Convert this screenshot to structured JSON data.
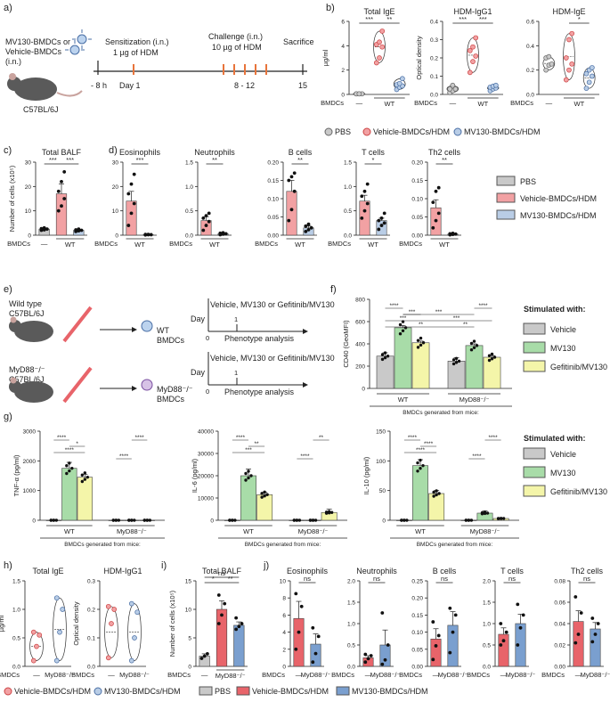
{
  "colors": {
    "pbs": "#c9c9c9",
    "vehicle": "#f2a1a3",
    "mv130": "#b9cde6",
    "veh_dot": "#e36b6f",
    "mv_dot": "#7aa3d6",
    "cvehicle": "#c9c9c9",
    "cmv130": "#a8dca8",
    "cgef": "#f4f5a9",
    "red_solid": "#e8646a",
    "blue_solid": "#7a9fcf"
  },
  "panels": {
    "a": "a)",
    "b": "b)",
    "c": "c)",
    "d": "d)",
    "e": "e)",
    "f": "f)",
    "g": "g)",
    "h": "h)",
    "i": "i)",
    "j": "j)"
  },
  "a": {
    "mouse_label": "C57BL/6J",
    "treatment": "MV130-BMDCs or\nVehicle-BMDCs\n(i.n.)",
    "sens_title": "Sensitization (i.n.)",
    "sens_sub": "1 µg of HDM",
    "chal_title": "Challenge (i.n.)",
    "chal_sub": "10 µg of HDM",
    "sacrifice": "Sacrifice",
    "t_m8": "- 8 h",
    "t_d1": "Day 1",
    "t_812": "8 - 12",
    "t_15": "15"
  },
  "e": {
    "wt_mouse": "Wild type\nC57BL/6J",
    "wt_cells": "WT\nBMDCs",
    "myd_mouse": "MyD88⁻/⁻\nC57BL/6J",
    "myd_cells": "MyD88⁻/⁻\nBMDCs",
    "stim": "Vehicle, MV130 or Gefitinib/MV130",
    "day": "Day",
    "d0": "0",
    "d1": "1",
    "pheno": "Phenotype analysis"
  },
  "common": {
    "bmdcs": "BMDCs",
    "wt": "WT",
    "dash": "—",
    "myd": "MyD88⁻/⁻",
    "generated": "BMDCs generated from mice:",
    "stimulated": "Stimulated with:",
    "ns": "ns"
  },
  "legend_b": [
    "PBS",
    "Vehicle-BMDCs/HDM",
    "MV130-BMDCs/HDM"
  ],
  "legend_d": [
    "PBS",
    "Vehicle-BMDCs/HDM",
    "MV130-BMDCs/HDM"
  ],
  "legend_f": [
    "Vehicle",
    "MV130",
    "Gefitinib/MV130"
  ],
  "legend_g": [
    "Vehicle",
    "MV130",
    "Gefitinib/MV130"
  ],
  "legend_h": [
    "Vehicle-BMDCs/HDM",
    "MV130-BMDCs/HDM"
  ],
  "legend_ij": [
    "PBS",
    "Vehicle-BMDCs/HDM",
    "MV130-BMDCs/HDM"
  ],
  "chart_data": [
    {
      "id": "b1",
      "type": "violin",
      "title": "Total IgE",
      "ylabel": "µg/ml",
      "ylim": [
        0,
        6
      ],
      "ticks": [
        0,
        2,
        4,
        6
      ],
      "groups": [
        {
          "name": "PBS",
          "points": [
            0.05,
            0.05,
            0.05,
            0.05,
            0.05
          ]
        },
        {
          "name": "Vehicle-BMDCs/HDM",
          "points": [
            2.6,
            3.0,
            3.9,
            4.1,
            4.3,
            5.2
          ]
        },
        {
          "name": "MV130-BMDCs/HDM",
          "points": [
            0.4,
            0.6,
            0.7,
            0.8,
            0.9,
            1.3
          ]
        }
      ],
      "sig": [
        "***",
        "**"
      ]
    },
    {
      "id": "b2",
      "type": "violin",
      "title": "HDM-IgG1",
      "ylabel": "Optical density",
      "ylim": [
        0,
        0.4
      ],
      "ticks": [
        0.0,
        0.1,
        0.2,
        0.3,
        0.4
      ],
      "groups": [
        {
          "name": "PBS",
          "points": [
            0.01,
            0.02,
            0.03,
            0.03,
            0.05
          ]
        },
        {
          "name": "Vehicle-BMDCs/HDM",
          "points": [
            0.12,
            0.18,
            0.21,
            0.24,
            0.26,
            0.31
          ]
        },
        {
          "name": "MV130-BMDCs/HDM",
          "points": [
            0.02,
            0.03,
            0.035,
            0.04,
            0.045,
            0.05
          ]
        }
      ],
      "sig": [
        "***",
        "***"
      ]
    },
    {
      "id": "b3",
      "type": "violin",
      "title": "HDM-IgE",
      "ylabel": "",
      "ylim": [
        0,
        0.6
      ],
      "ticks": [
        0.0,
        0.2,
        0.4,
        0.6
      ],
      "groups": [
        {
          "name": "PBS",
          "points": [
            0.2,
            0.24,
            0.25,
            0.3,
            0.31
          ]
        },
        {
          "name": "Vehicle-BMDCs/HDM",
          "points": [
            0.12,
            0.2,
            0.25,
            0.3,
            0.45,
            0.5
          ]
        },
        {
          "name": "MV130-BMDCs/HDM",
          "points": [
            0.05,
            0.1,
            0.15,
            0.17,
            0.2,
            0.22
          ]
        }
      ],
      "sig": [
        "",
        "*"
      ]
    },
    {
      "id": "c",
      "type": "bar",
      "title": "Total BALF",
      "ylabel": "Number of cells (x10⁵)",
      "ylim": [
        0,
        30
      ],
      "ticks": [
        0,
        10,
        20,
        30
      ],
      "groups": [
        {
          "name": "PBS",
          "value": 2.5,
          "err": 0.5,
          "points": [
            2,
            2.2,
            2.5,
            2.7,
            3
          ]
        },
        {
          "name": "Vehicle-BMDCs/HDM",
          "value": 17,
          "err": 4,
          "points": [
            10,
            12,
            15,
            18,
            22,
            26
          ]
        },
        {
          "name": "MV130-BMDCs/HDM",
          "value": 2,
          "err": 0.3,
          "points": [
            1.5,
            1.8,
            2,
            2.2,
            2.5
          ]
        }
      ],
      "sig": [
        "***",
        "***"
      ]
    },
    {
      "id": "d1",
      "type": "bar",
      "title": "Eosinophils",
      "ylim": [
        0,
        30
      ],
      "ticks": [
        0,
        10,
        20,
        30
      ],
      "groups": [
        {
          "name": "Vehicle-BMDCs/HDM",
          "value": 14,
          "err": 4,
          "points": [
            4,
            9,
            13,
            17,
            21,
            25
          ]
        },
        {
          "name": "MV130-BMDCs/HDM",
          "value": 0.2,
          "err": 0.1,
          "points": [
            0.1,
            0.2,
            0.2,
            0.3,
            0.3
          ]
        }
      ],
      "sig": [
        "***"
      ]
    },
    {
      "id": "d2",
      "type": "bar",
      "title": "Neutrophils",
      "ylim": [
        0,
        1.5
      ],
      "ticks": [
        0.0,
        0.5,
        1.0,
        1.5
      ],
      "groups": [
        {
          "name": "Vehicle-BMDCs/HDM",
          "value": 0.3,
          "err": 0.08,
          "points": [
            0.1,
            0.2,
            0.28,
            0.35,
            0.4,
            0.45
          ]
        },
        {
          "name": "MV130-BMDCs/HDM",
          "value": 0.03,
          "err": 0.01,
          "points": [
            0.01,
            0.02,
            0.03,
            0.04,
            0.05
          ]
        }
      ],
      "sig": [
        "**"
      ]
    },
    {
      "id": "d3",
      "type": "bar",
      "title": "B cells",
      "ylim": [
        0,
        0.2
      ],
      "ticks": [
        0.0,
        0.05,
        0.1,
        0.15,
        0.2
      ],
      "groups": [
        {
          "name": "Vehicle-BMDCs/HDM",
          "value": 0.12,
          "err": 0.03,
          "points": [
            0.04,
            0.07,
            0.12,
            0.15,
            0.16,
            0.17
          ]
        },
        {
          "name": "MV130-BMDCs/HDM",
          "value": 0.02,
          "err": 0.005,
          "points": [
            0.01,
            0.015,
            0.02,
            0.025,
            0.03
          ]
        }
      ],
      "sig": [
        "**"
      ]
    },
    {
      "id": "d4",
      "type": "bar",
      "title": "T cells",
      "ylim": [
        0,
        1.5
      ],
      "ticks": [
        0.0,
        0.5,
        1.0,
        1.5
      ],
      "groups": [
        {
          "name": "Vehicle-BMDCs/HDM",
          "value": 0.7,
          "err": 0.12,
          "points": [
            0.35,
            0.5,
            0.65,
            0.8,
            0.9,
            1.05
          ]
        },
        {
          "name": "MV130-BMDCs/HDM",
          "value": 0.3,
          "err": 0.05,
          "points": [
            0.12,
            0.2,
            0.25,
            0.3,
            0.35,
            0.45
          ]
        }
      ],
      "sig": [
        "*"
      ]
    },
    {
      "id": "d5",
      "type": "bar",
      "title": "Th2 cells",
      "ylim": [
        0,
        0.2
      ],
      "ticks": [
        0.0,
        0.05,
        0.1,
        0.15,
        0.2
      ],
      "groups": [
        {
          "name": "Vehicle-BMDCs/HDM",
          "value": 0.075,
          "err": 0.022,
          "points": [
            0.02,
            0.04,
            0.06,
            0.09,
            0.12,
            0.13
          ]
        },
        {
          "name": "MV130-BMDCs/HDM",
          "value": 0.003,
          "err": 0.001,
          "points": [
            0.001,
            0.002,
            0.003,
            0.004,
            0.005
          ]
        }
      ],
      "sig": [
        "**"
      ]
    },
    {
      "id": "f",
      "type": "bar",
      "title": "",
      "ylabel": "CD40 (GeoMFI)",
      "ylim": [
        0,
        800
      ],
      "ticks": [
        0,
        200,
        400,
        600,
        800
      ],
      "categories": [
        "WT",
        "MyD88⁻/⁻"
      ],
      "series": [
        {
          "name": "Vehicle",
          "values": [
            290,
            245
          ],
          "err": [
            30,
            30
          ]
        },
        {
          "name": "MV130",
          "values": [
            545,
            385
          ],
          "err": [
            20,
            15
          ]
        },
        {
          "name": "Gefitinib/MV130",
          "values": [
            410,
            280
          ],
          "err": [
            15,
            15
          ]
        }
      ],
      "sig": [
        "****",
        "***",
        "***",
        "**",
        "****",
        "***",
        "***",
        "**"
      ]
    },
    {
      "id": "g1",
      "type": "bar",
      "title": "",
      "ylabel": "TNF-α (pg/ml)",
      "ylim": [
        0,
        3000
      ],
      "ticks": [
        0,
        1000,
        2000,
        3000
      ],
      "categories": [
        "WT",
        "MyD88⁻/⁻"
      ],
      "series": [
        {
          "name": "Vehicle",
          "values": [
            0,
            0
          ],
          "err": [
            0,
            0
          ]
        },
        {
          "name": "MV130",
          "values": [
            1750,
            0
          ],
          "err": [
            200,
            0
          ]
        },
        {
          "name": "Gefitinib/MV130",
          "values": [
            1450,
            0
          ],
          "err": [
            100,
            0
          ]
        }
      ],
      "sig": [
        "****",
        "*",
        "****",
        "****",
        "****"
      ]
    },
    {
      "id": "g2",
      "type": "bar",
      "title": "",
      "ylabel": "IL-6 (pg/ml)",
      "ylim": [
        0,
        40000
      ],
      "ticks": [
        0,
        10000,
        20000,
        30000,
        40000
      ],
      "categories": [
        "WT",
        "MyD88⁻/⁻"
      ],
      "series": [
        {
          "name": "Vehicle",
          "values": [
            0,
            0
          ],
          "err": [
            0,
            0
          ]
        },
        {
          "name": "MV130",
          "values": [
            20000,
            0
          ],
          "err": [
            3000,
            0
          ]
        },
        {
          "name": "Gefitinib/MV130",
          "values": [
            11500,
            3500
          ],
          "err": [
            1000,
            1500
          ]
        }
      ],
      "sig": [
        "****",
        "**",
        "***",
        "****",
        "**"
      ]
    },
    {
      "id": "g3",
      "type": "bar",
      "title": "",
      "ylabel": "IL-10 (pg/ml)",
      "ylim": [
        0,
        150
      ],
      "ticks": [
        0,
        50,
        100,
        150
      ],
      "categories": [
        "WT",
        "MyD88⁻/⁻"
      ],
      "series": [
        {
          "name": "Vehicle",
          "values": [
            0,
            0
          ],
          "err": [
            0,
            0
          ]
        },
        {
          "name": "MV130",
          "values": [
            92,
            12
          ],
          "err": [
            10,
            4
          ]
        },
        {
          "name": "Gefitinib/MV130",
          "values": [
            45,
            3
          ],
          "err": [
            5,
            1
          ]
        }
      ],
      "sig": [
        "****",
        "****",
        "****",
        "****",
        "****"
      ]
    },
    {
      "id": "h1",
      "type": "violin",
      "title": "Total IgE",
      "ylabel": "µg/ml",
      "ylim": [
        0,
        1.5
      ],
      "ticks": [
        0.0,
        0.5,
        1.0,
        1.5
      ],
      "groups": [
        {
          "name": "Vehicle-BMDCs/HDM",
          "points": [
            0.1,
            0.35,
            0.55,
            0.6
          ]
        },
        {
          "name": "MV130-BMDCs/HDM",
          "points": [
            0.1,
            0.6,
            1.0,
            1.2
          ]
        }
      ]
    },
    {
      "id": "h2",
      "type": "violin",
      "title": "HDM-IgG1",
      "ylabel": "Optical density",
      "ylim": [
        0,
        0.3
      ],
      "ticks": [
        0.0,
        0.1,
        0.2,
        0.3
      ],
      "groups": [
        {
          "name": "Vehicle-BMDCs/HDM",
          "points": [
            0.03,
            0.15,
            0.2,
            0.21
          ]
        },
        {
          "name": "MV130-BMDCs/HDM",
          "points": [
            0.02,
            0.1,
            0.19,
            0.22
          ]
        }
      ]
    },
    {
      "id": "i",
      "type": "bar",
      "title": "Total BALF",
      "ylabel": "Number of cells (x10⁵)",
      "ylim": [
        0,
        15
      ],
      "ticks": [
        0,
        5,
        10,
        15
      ],
      "groups": [
        {
          "name": "PBS",
          "value": 1.8,
          "err": 0.4,
          "points": [
            1.4,
            1.8,
            2.2
          ]
        },
        {
          "name": "Vehicle-BMDCs/HDM",
          "value": 10,
          "err": 1.5,
          "points": [
            7.5,
            9,
            11,
            12.5
          ]
        },
        {
          "name": "MV130-BMDCs/HDM",
          "value": 7.2,
          "err": 0.6,
          "points": [
            6.5,
            7,
            7.5,
            8.5
          ]
        }
      ],
      "sig": [
        "*",
        "**",
        "ns"
      ]
    },
    {
      "id": "j1",
      "type": "bar",
      "title": "Eosinophils",
      "ylim": [
        0,
        10
      ],
      "ticks": [
        0,
        2,
        4,
        6,
        8,
        10
      ],
      "groups": [
        {
          "name": "Vehicle-BMDCs/HDM",
          "value": 5.6,
          "err": 2,
          "points": [
            2,
            4,
            7,
            8.5
          ]
        },
        {
          "name": "MV130-BMDCs/HDM",
          "value": 2.6,
          "err": 1.2,
          "points": [
            0.5,
            1.5,
            3.5,
            4.5
          ]
        }
      ],
      "sig": [
        "ns"
      ]
    },
    {
      "id": "j2",
      "type": "bar",
      "title": "Neutrophils",
      "ylim": [
        0,
        2.0
      ],
      "ticks": [
        0.0,
        0.5,
        1.0,
        1.5,
        2.0
      ],
      "groups": [
        {
          "name": "Vehicle-BMDCs/HDM",
          "value": 0.2,
          "err": 0.05,
          "points": [
            0.1,
            0.18,
            0.25,
            0.28
          ]
        },
        {
          "name": "MV130-BMDCs/HDM",
          "value": 0.5,
          "err": 0.35,
          "points": [
            0.05,
            0.15,
            0.5,
            1.25
          ]
        }
      ],
      "sig": [
        "ns"
      ]
    },
    {
      "id": "j3",
      "type": "bar",
      "title": "B cells",
      "ylim": [
        0,
        0.25
      ],
      "ticks": [
        0.0,
        0.05,
        0.1,
        0.15,
        0.2,
        0.25
      ],
      "groups": [
        {
          "name": "Vehicle-BMDCs/HDM",
          "value": 0.08,
          "err": 0.03,
          "points": [
            0.02,
            0.06,
            0.09,
            0.13
          ]
        },
        {
          "name": "MV130-BMDCs/HDM",
          "value": 0.12,
          "err": 0.04,
          "points": [
            0.04,
            0.1,
            0.15,
            0.17
          ]
        }
      ],
      "sig": [
        "ns"
      ]
    },
    {
      "id": "j4",
      "type": "bar",
      "title": "T cells",
      "ylim": [
        0,
        2.0
      ],
      "ticks": [
        0.0,
        0.5,
        1.0,
        1.5,
        2.0
      ],
      "groups": [
        {
          "name": "Vehicle-BMDCs/HDM",
          "value": 0.75,
          "err": 0.15,
          "points": [
            0.5,
            0.6,
            0.8,
            1.0
          ]
        },
        {
          "name": "MV130-BMDCs/HDM",
          "value": 1.0,
          "err": 0.22,
          "points": [
            0.5,
            0.9,
            1.2,
            1.45
          ]
        }
      ],
      "sig": [
        "ns"
      ]
    },
    {
      "id": "j5",
      "type": "bar",
      "title": "Th2 cells",
      "ylim": [
        0,
        0.08
      ],
      "ticks": [
        0.0,
        0.02,
        0.04,
        0.06,
        0.08
      ],
      "groups": [
        {
          "name": "Vehicle-BMDCs/HDM",
          "value": 0.042,
          "err": 0.01,
          "points": [
            0.022,
            0.03,
            0.05,
            0.065
          ]
        },
        {
          "name": "MV130-BMDCs/HDM",
          "value": 0.035,
          "err": 0.006,
          "points": [
            0.023,
            0.03,
            0.04,
            0.045
          ]
        }
      ],
      "sig": [
        "ns"
      ]
    }
  ]
}
